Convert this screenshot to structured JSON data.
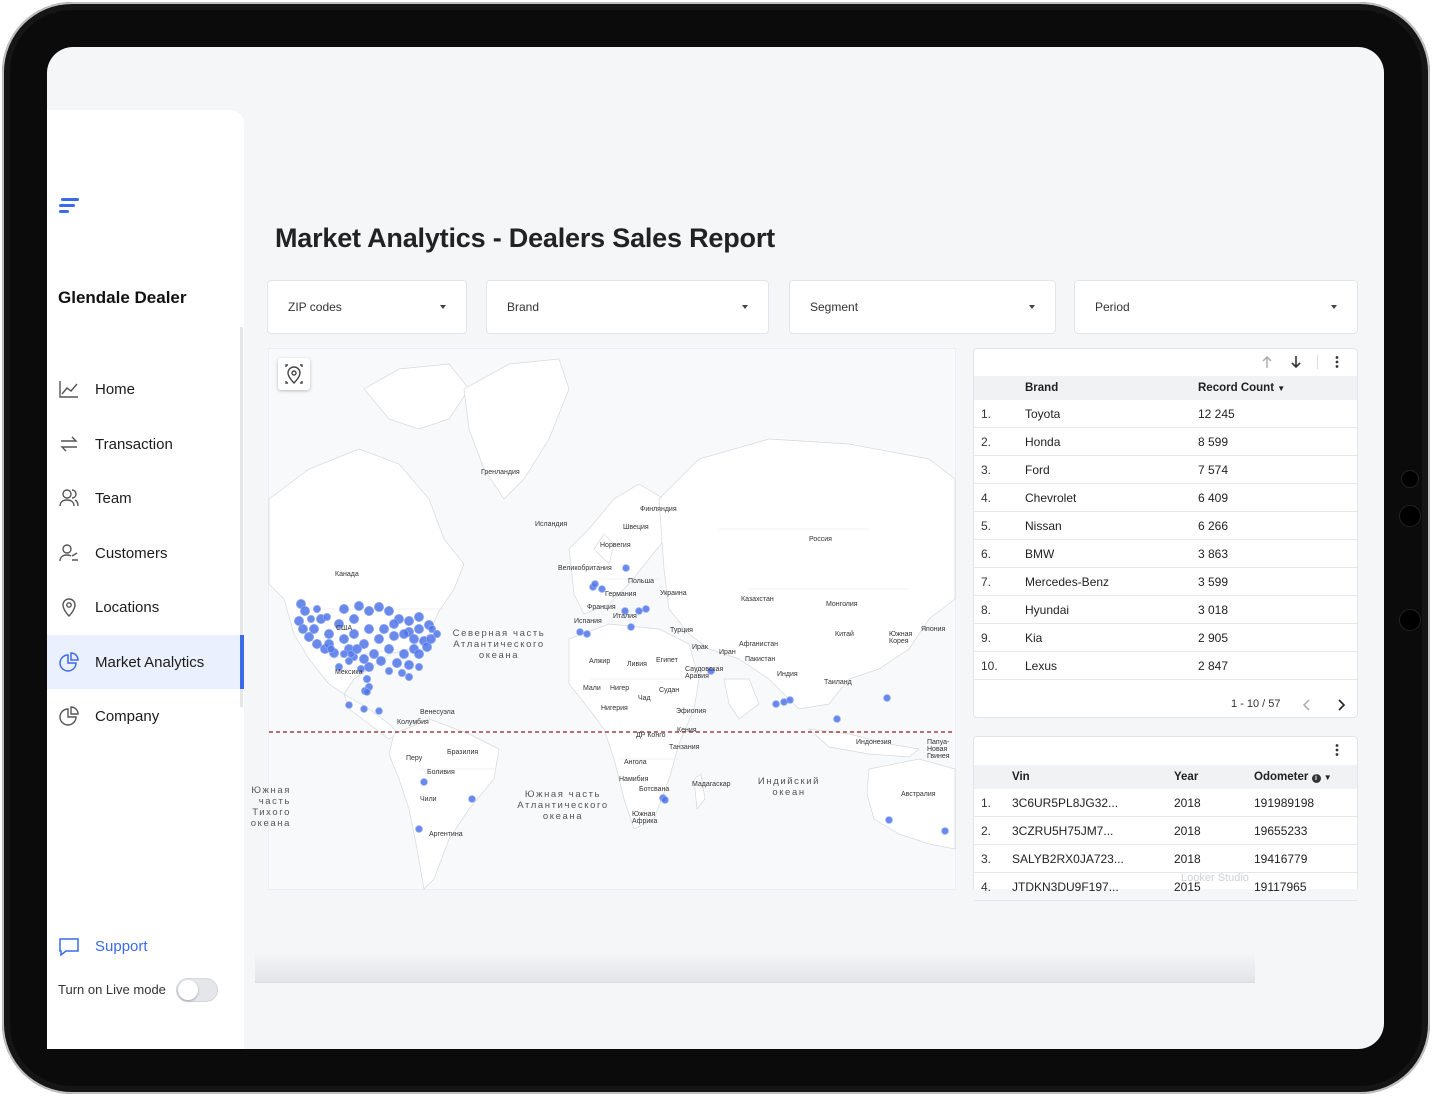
{
  "app": {
    "title": "Glendale Dealer"
  },
  "sidebar": {
    "items": [
      {
        "label": "Home",
        "icon": "chart-line-icon"
      },
      {
        "label": "Transaction",
        "icon": "arrows-swap-icon"
      },
      {
        "label": "Team",
        "icon": "team-icon"
      },
      {
        "label": "Customers",
        "icon": "customers-icon"
      },
      {
        "label": "Locations",
        "icon": "location-pin-icon"
      },
      {
        "label": "Market Analytics",
        "icon": "pie-chart-icon",
        "active": true
      },
      {
        "label": "Company",
        "icon": "pie-chart-icon"
      }
    ],
    "support_label": "Support",
    "live_mode_label": "Turn on Live mode",
    "live_mode_on": false
  },
  "report": {
    "title": "Market Analytics - Dealers Sales Report",
    "filters": [
      "ZIP codes",
      "Brand",
      "Segment",
      "Period"
    ]
  },
  "map": {
    "country_labels": [
      "Гренландия",
      "Исландия",
      "Финляндия",
      "Швеция",
      "Норвегия",
      "Россия",
      "Великобритания",
      "Польша",
      "Германия",
      "Украина",
      "Казахстан",
      "Франция",
      "Монголия",
      "Испания",
      "Италия",
      "Турция",
      "Китай",
      "Южная Корея",
      "Япония",
      "Канада",
      "Ирак",
      "Иран",
      "Афганистан",
      "Пакистан",
      "Алжир",
      "Ливия",
      "Египет",
      "Саудовская Аравия",
      "Индия",
      "Мексика",
      "Мали",
      "Нигер",
      "Чад",
      "Судан",
      "Таиланд",
      "Нигерия",
      "Эфиопия",
      "Венесуэла",
      "Колумбия",
      "ДР Конго",
      "Кения",
      "Индонезия",
      "Папуа-Новая Гвинея",
      "Бразилия",
      "Танзания",
      "Перу",
      "Ангола",
      "Боливия",
      "Намибия",
      "Мадагаскар",
      "Ботсвана",
      "Чили",
      "Австралия",
      "Южная Африка",
      "Аргентина",
      "США"
    ],
    "ocean_labels": [
      "Северная часть Атлантического океана",
      "Южная часть Атлантического океана",
      "Индийский океан",
      "Южная часть Тихого океана"
    ],
    "marker_color": "#4f74e8"
  },
  "brand_table": {
    "columns": [
      "Brand",
      "Record Count"
    ],
    "rows": [
      {
        "n": "1.",
        "brand": "Toyota",
        "count": "12 245"
      },
      {
        "n": "2.",
        "brand": "Honda",
        "count": "8 599"
      },
      {
        "n": "3.",
        "brand": "Ford",
        "count": "7 574"
      },
      {
        "n": "4.",
        "brand": "Chevrolet",
        "count": "6 409"
      },
      {
        "n": "5.",
        "brand": "Nissan",
        "count": "6 266"
      },
      {
        "n": "6.",
        "brand": "BMW",
        "count": "3 863"
      },
      {
        "n": "7.",
        "brand": "Mercedes-Benz",
        "count": "3 599"
      },
      {
        "n": "8.",
        "brand": "Hyundai",
        "count": "3 018"
      },
      {
        "n": "9.",
        "brand": "Kia",
        "count": "2 905"
      },
      {
        "n": "10.",
        "brand": "Lexus",
        "count": "2 847"
      }
    ],
    "pagination": "1 - 10 / 57"
  },
  "vin_table": {
    "columns": [
      "Vin",
      "Year",
      "Odometer"
    ],
    "rows": [
      {
        "n": "1.",
        "vin": "3C6UR5PL8JG32...",
        "year": "2018",
        "odo": "191989198"
      },
      {
        "n": "2.",
        "vin": "3CZRU5H75JM7...",
        "year": "2018",
        "odo": "19655233"
      },
      {
        "n": "3.",
        "vin": "SALYB2RX0JA723...",
        "year": "2018",
        "odo": "19416779"
      },
      {
        "n": "4.",
        "vin": "JTDKN3DU9F197...",
        "year": "2015",
        "odo": "19117965"
      }
    ]
  },
  "footer": {
    "watermark": "Looker Studio"
  }
}
